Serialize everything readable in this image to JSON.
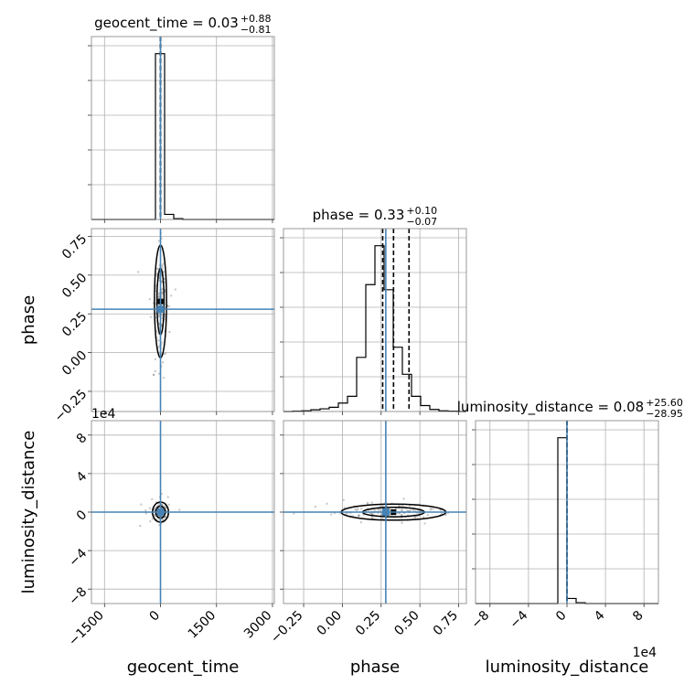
{
  "chart_data": {
    "type": "corner",
    "parameters": [
      "geocent_time",
      "phase",
      "luminosity_distance"
    ],
    "axis_labels": {
      "geocent_time": "geocent_time",
      "phase": "phase",
      "luminosity_distance": "luminosity_distance"
    },
    "titles": [
      {
        "param": "geocent_time",
        "text": "geocent_time = 0.03",
        "plus": "+0.88",
        "minus": "−0.81"
      },
      {
        "param": "phase",
        "text": "phase = 0.33",
        "plus": "+0.10",
        "minus": "−0.07"
      },
      {
        "param": "luminosity_distance",
        "text": "luminosity_distance = 0.08",
        "plus": "+25.60",
        "minus": "−28.95"
      }
    ],
    "ranges": {
      "geocent_time": [
        -1850,
        3050
      ],
      "phase": [
        -0.38,
        0.8
      ],
      "luminosity_distance": [
        -9.5,
        9.5
      ]
    },
    "ticks": {
      "geocent_time": {
        "values": [
          -1500,
          0,
          1500,
          3000
        ],
        "labels": [
          "−1500",
          "0",
          "1500",
          "3000"
        ]
      },
      "phase": {
        "values": [
          -0.25,
          0.0,
          0.25,
          0.5,
          0.75
        ],
        "labels": [
          "−0.25",
          "0.00",
          "0.25",
          "0.50",
          "0.75"
        ]
      },
      "luminosity_distance": {
        "values": [
          -8,
          -4,
          0,
          4,
          8
        ],
        "labels": [
          "−8",
          "−4",
          "0",
          "4",
          "8"
        ]
      }
    },
    "offset_text": {
      "luminosity_distance": "1e4"
    },
    "truths": {
      "geocent_time": 0,
      "phase": 0.28,
      "luminosity_distance": 0
    },
    "quantiles": {
      "geocent_time": [
        -0.78,
        0.03,
        0.91
      ],
      "phase": [
        0.26,
        0.33,
        0.43
      ],
      "luminosity_distance": [
        -0.0029,
        8e-06,
        0.0026
      ]
    },
    "histograms": {
      "geocent_time": {
        "edges": [
          -1850,
          -1605,
          -1360,
          -1115,
          -870,
          -625,
          -380,
          -135,
          110,
          355,
          600,
          845,
          1090,
          1335,
          1580,
          1825,
          2070,
          2315,
          2560,
          2805,
          3050
        ],
        "counts": [
          0,
          0,
          0,
          0,
          0,
          0,
          0,
          0.98,
          0.03,
          0.005,
          0,
          0,
          0,
          0,
          0,
          0,
          0,
          0,
          0,
          0
        ]
      },
      "phase": {
        "edges": [
          -0.38,
          -0.321,
          -0.262,
          -0.203,
          -0.144,
          -0.085,
          -0.026,
          0.033,
          0.092,
          0.151,
          0.21,
          0.269,
          0.328,
          0.387,
          0.446,
          0.505,
          0.564,
          0.623,
          0.682,
          0.741,
          0.8
        ],
        "counts": [
          0,
          0.002,
          0.004,
          0.01,
          0.016,
          0.025,
          0.05,
          0.09,
          0.32,
          0.75,
          0.98,
          0.72,
          0.38,
          0.22,
          0.09,
          0.035,
          0.012,
          0.004,
          0.002,
          0
        ]
      },
      "luminosity_distance": {
        "edges": [
          -9.5,
          -8.55,
          -7.6,
          -6.65,
          -5.7,
          -4.75,
          -3.8,
          -2.85,
          -1.9,
          -0.95,
          0,
          0.95,
          1.9,
          2.85,
          3.8,
          4.75,
          5.7,
          6.65,
          7.6,
          8.55,
          9.5
        ],
        "counts": [
          0,
          0,
          0,
          0,
          0,
          0,
          0,
          0,
          0,
          0.98,
          0.03,
          0.005,
          0,
          0,
          0,
          0,
          0,
          0,
          0,
          0
        ]
      }
    },
    "grid": true
  }
}
